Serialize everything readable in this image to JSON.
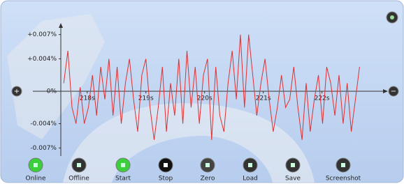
{
  "chart_data": {
    "type": "line",
    "x": [
      217.6,
      217.67,
      217.74,
      217.81,
      217.88,
      217.95,
      218.02,
      218.09,
      218.16,
      218.23,
      218.3,
      218.37,
      218.44,
      218.51,
      218.58,
      218.65,
      218.72,
      218.79,
      218.86,
      218.93,
      219.0,
      219.07,
      219.14,
      219.21,
      219.28,
      219.35,
      219.42,
      219.49,
      219.56,
      219.63,
      219.7,
      219.77,
      219.84,
      219.91,
      219.98,
      220.05,
      220.12,
      220.19,
      220.26,
      220.33,
      220.4,
      220.47,
      220.54,
      220.61,
      220.68,
      220.75,
      220.82,
      220.89,
      220.96,
      221.03,
      221.1,
      221.17,
      221.24,
      221.31,
      221.38,
      221.45,
      221.52,
      221.59,
      221.66,
      221.73,
      221.8,
      221.87,
      221.94,
      222.01,
      222.08,
      222.15,
      222.22,
      222.29,
      222.36,
      222.43,
      222.5,
      222.57,
      222.64
    ],
    "values": [
      0.001,
      0.005,
      -0.002,
      -0.004,
      0.0005,
      -0.004,
      -0.002,
      0.002,
      -0.003,
      0.003,
      -0.001,
      0.004,
      -0.003,
      0.003,
      -0.004,
      0.001,
      0.004,
      -0.001,
      -0.005,
      0.002,
      0.004,
      -0.002,
      -0.006,
      -0.002,
      0.003,
      -0.005,
      0.001,
      -0.003,
      0.004,
      -0.004,
      0.005,
      -0.002,
      0.003,
      -0.004,
      0.002,
      0.004,
      -0.006,
      0.003,
      -0.003,
      -0.005,
      0.001,
      0.005,
      -0.001,
      0.007,
      -0.002,
      0.007,
      0.002,
      -0.003,
      0.001,
      0.004,
      -0.001,
      -0.005,
      -0.002,
      0.002,
      -0.002,
      -0.001,
      0.003,
      -0.002,
      -0.006,
      0.001,
      -0.005,
      -0.001,
      0.002,
      -0.004,
      0.003,
      0.001,
      -0.003,
      0.002,
      -0.004,
      0.001,
      -0.005,
      -0.001,
      0.003
    ],
    "color": "#e03030",
    "xlim": [
      217.55,
      223.1
    ],
    "xticks": [
      {
        "value": 218,
        "label": "218s"
      },
      {
        "value": 219,
        "label": "219s"
      },
      {
        "value": 220,
        "label": "220s"
      },
      {
        "value": 221,
        "label": "221s"
      },
      {
        "value": 222,
        "label": "222s"
      }
    ],
    "ylim": [
      -0.008,
      0.008
    ],
    "yticks": [
      {
        "value": 0.007,
        "label": "+0.007%"
      },
      {
        "value": 0.004,
        "label": "+0.004%"
      },
      {
        "value": 0,
        "label": "0%"
      },
      {
        "value": -0.004,
        "label": "-0.004%"
      },
      {
        "value": -0.007,
        "label": "-0.007%"
      }
    ]
  },
  "toolbar": {
    "buttons": [
      "Online",
      "Offline",
      "Start",
      "Stop",
      "Zero",
      "Load",
      "Save",
      "Screenshot"
    ]
  }
}
